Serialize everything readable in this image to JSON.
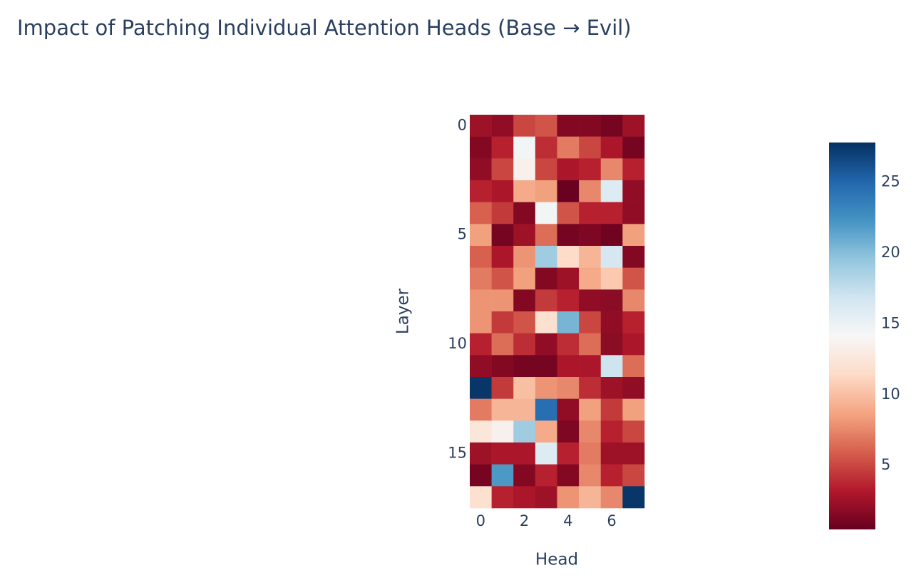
{
  "chart_data": {
    "type": "heatmap",
    "title": "Impact of Patching Individual Attention Heads (Base → Evil)",
    "x_label": "Head",
    "y_label": "Layer",
    "xlim": [
      -0.5,
      7.5
    ],
    "ylim": [
      17.5,
      -0.5
    ],
    "xticks": [
      0,
      2,
      4,
      6
    ],
    "yticks": [
      0,
      5,
      10,
      15
    ],
    "zlim": [
      0.48,
      27.8
    ],
    "colorbar_ticks": [
      5,
      10,
      15,
      20,
      25
    ],
    "colorscale": [
      "#67001f",
      "#b2182b",
      "#d6604d",
      "#f4a582",
      "#fddbc7",
      "#f7f7f7",
      "#d1e5f0",
      "#92c5de",
      "#4393c3",
      "#2166ac",
      "#053061"
    ],
    "z": [
      [
        2.5,
        2,
        5,
        5.5,
        1.5,
        1.5,
        1,
        2.5
      ],
      [
        1.5,
        3.5,
        14.5,
        4,
        7,
        5,
        3,
        1
      ],
      [
        2,
        5,
        13.5,
        5,
        3,
        3.5,
        7.5,
        3.5
      ],
      [
        3.5,
        3,
        9,
        8.5,
        0.6,
        7.5,
        16,
        2
      ],
      [
        6,
        4.5,
        1.5,
        14.5,
        5.5,
        3.5,
        3.5,
        2
      ],
      [
        8.5,
        1,
        2.5,
        6.5,
        1,
        1.3,
        0.8,
        8.5
      ],
      [
        6,
        3,
        8,
        19,
        11.5,
        9.5,
        16.5,
        1.5
      ],
      [
        7,
        5.5,
        8.5,
        1.5,
        2.5,
        9,
        10.5,
        5.5
      ],
      [
        8,
        8,
        1.5,
        4.5,
        3.5,
        2,
        1.8,
        7.5
      ],
      [
        8,
        4.5,
        5.5,
        12,
        20.5,
        5,
        2,
        3.5
      ],
      [
        3.5,
        6.5,
        4,
        2,
        4,
        6.5,
        1.8,
        3
      ],
      [
        2,
        1.5,
        1,
        1,
        3,
        3,
        17,
        6.5
      ],
      [
        27.5,
        4.5,
        10,
        8,
        7.5,
        4,
        2.5,
        2
      ],
      [
        7,
        9.5,
        9.5,
        24.5,
        2,
        8.5,
        4.5,
        8.5
      ],
      [
        12.5,
        13.5,
        19,
        9,
        1.3,
        7.5,
        3.5,
        5
      ],
      [
        2.5,
        3,
        3,
        16,
        3.5,
        7,
        2.5,
        2.5
      ],
      [
        1,
        22,
        1.5,
        3.5,
        1.5,
        7.5,
        3.5,
        5
      ],
      [
        12,
        3.5,
        3,
        2.5,
        8,
        9.5,
        7.5,
        27.5
      ]
    ]
  }
}
